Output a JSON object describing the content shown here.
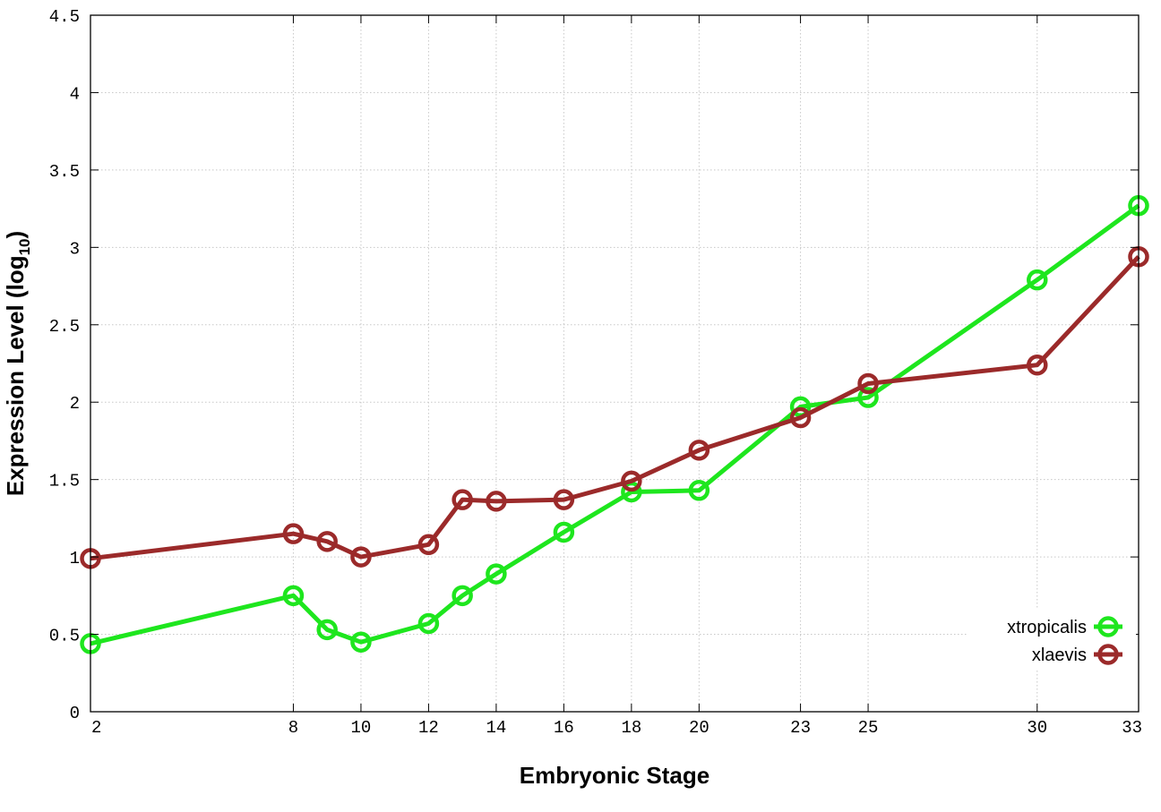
{
  "chart_data": {
    "type": "line",
    "xlabel": "Embryonic Stage",
    "ylabel": "Expression Level (log",
    "ylabel_sub": "10",
    "ylabel_end": ")",
    "x_ticks": [
      2,
      8,
      10,
      12,
      14,
      16,
      18,
      20,
      23,
      25,
      30,
      33
    ],
    "x_tick_labels": [
      "2",
      "8",
      "10",
      "12",
      "14",
      "16",
      "18",
      "20",
      "23",
      "25",
      "30",
      "33"
    ],
    "y_ticks": [
      0,
      0.5,
      1,
      1.5,
      2,
      2.5,
      3,
      3.5,
      4,
      4.5
    ],
    "y_tick_labels": [
      "0",
      "0.5",
      "1",
      "1.5",
      "2",
      "2.5",
      "3",
      "3.5",
      "4",
      "4.5"
    ],
    "xlim": [
      2,
      33
    ],
    "ylim": [
      0,
      4.5
    ],
    "grid": true,
    "legend_position": "bottom-right",
    "series": [
      {
        "name": "xtropicalis",
        "color": "#1ee61e",
        "x": [
          2,
          8,
          9,
          10,
          12,
          13,
          14,
          16,
          18,
          20,
          23,
          25,
          30,
          33
        ],
        "values": [
          0.44,
          0.75,
          0.53,
          0.45,
          0.57,
          0.75,
          0.89,
          1.16,
          1.42,
          1.43,
          1.97,
          2.03,
          2.79,
          3.27
        ]
      },
      {
        "name": "xlaevis",
        "color": "#9b2a2a",
        "x": [
          2,
          8,
          9,
          10,
          12,
          13,
          14,
          16,
          18,
          20,
          23,
          25,
          30,
          33
        ],
        "values": [
          0.99,
          1.15,
          1.1,
          1.0,
          1.08,
          1.37,
          1.36,
          1.37,
          1.49,
          1.69,
          1.9,
          2.12,
          2.24,
          2.94
        ]
      }
    ]
  }
}
